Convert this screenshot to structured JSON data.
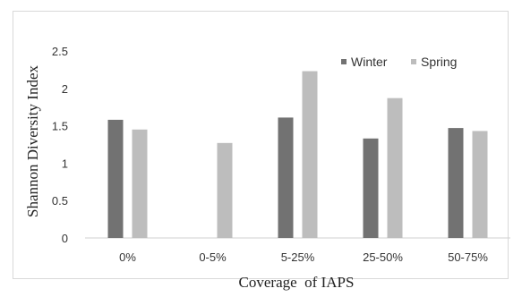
{
  "chart_data": {
    "type": "bar",
    "categories": [
      "0%",
      "0-5%",
      "5-25%",
      "25-50%",
      "50-75%"
    ],
    "series": [
      {
        "name": "Winter",
        "values": [
          1.58,
          null,
          1.61,
          1.33,
          1.47
        ],
        "color": "#727272"
      },
      {
        "name": "Spring",
        "values": [
          1.45,
          1.27,
          2.23,
          1.87,
          1.43
        ],
        "color": "#bdbdbd"
      }
    ],
    "title": "",
    "xlabel": "Coverage  of IAPS",
    "ylabel": "Shannon Diversity Index",
    "ylim": [
      0,
      2.5
    ],
    "yticks": [
      "0",
      "0.5",
      "1",
      "1.5",
      "2",
      "2.5"
    ],
    "grid": false,
    "legend_position": "top-right"
  }
}
